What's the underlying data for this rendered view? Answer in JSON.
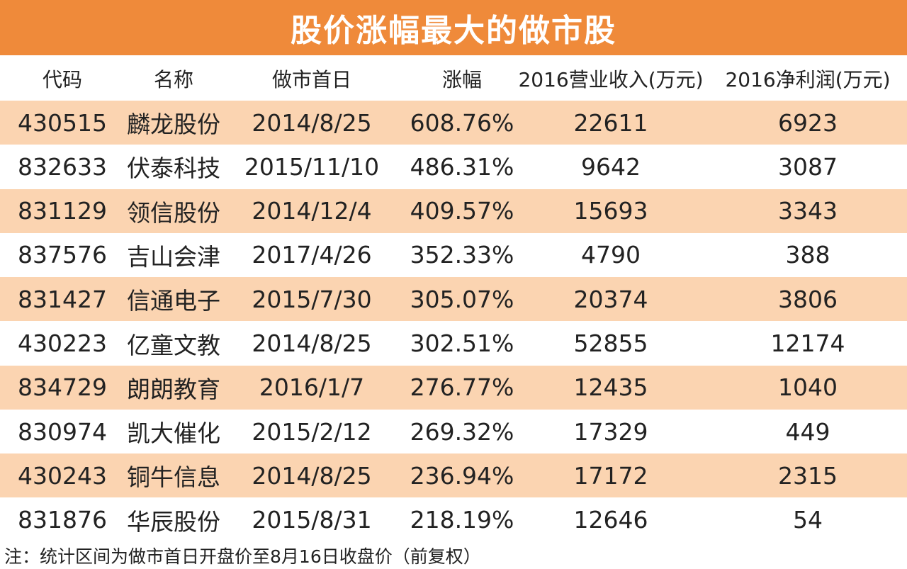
{
  "header": {
    "title": "股价涨幅最大的做市股"
  },
  "table": {
    "columns": [
      "代码",
      "名称",
      "做市首日",
      "涨幅",
      "2016营业收入(万元)",
      "2016净利润(万元)"
    ],
    "rows": [
      [
        "430515",
        "麟龙股份",
        "2014/8/25",
        "608.76%",
        "22611",
        "6923"
      ],
      [
        "832633",
        "伏泰科技",
        "2015/11/10",
        "486.31%",
        "9642",
        "3087"
      ],
      [
        "831129",
        "领信股份",
        "2014/12/4",
        "409.57%",
        "15693",
        "3343"
      ],
      [
        "837576",
        "吉山会津",
        "2017/4/26",
        "352.33%",
        "4790",
        "388"
      ],
      [
        "831427",
        "信通电子",
        "2015/7/30",
        "305.07%",
        "20374",
        "3806"
      ],
      [
        "430223",
        "亿童文教",
        "2014/8/25",
        "302.51%",
        "52855",
        "12174"
      ],
      [
        "834729",
        "朗朗教育",
        "2016/1/7",
        "276.77%",
        "12435",
        "1040"
      ],
      [
        "830974",
        "凯大催化",
        "2015/2/12",
        "269.32%",
        "17329",
        "449"
      ],
      [
        "430243",
        "铜牛信息",
        "2014/8/25",
        "236.94%",
        "17172",
        "2315"
      ],
      [
        "831876",
        "华辰股份",
        "2015/8/31",
        "218.19%",
        "12646",
        "54"
      ]
    ]
  },
  "footnote": "注：统计区间为做市首日开盘价至8月16日收盘价（前复权）"
}
